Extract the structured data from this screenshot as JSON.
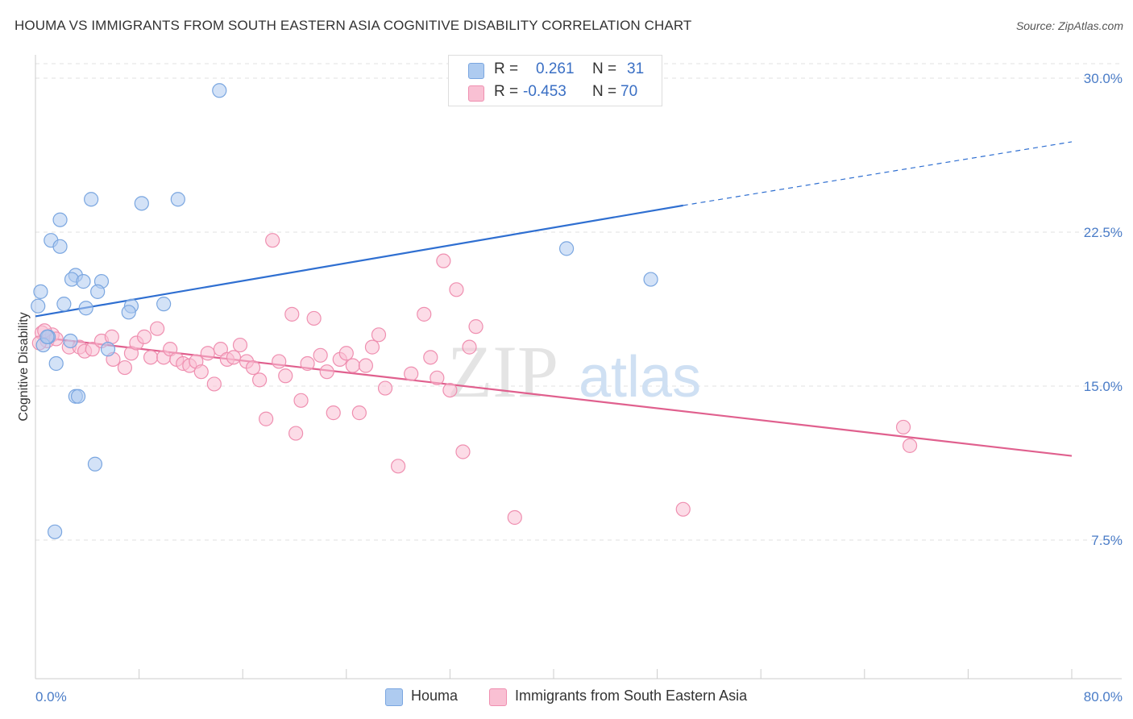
{
  "header": {
    "title": "HOUMA VS IMMIGRANTS FROM SOUTH EASTERN ASIA COGNITIVE DISABILITY CORRELATION CHART",
    "source": "Source: ZipAtlas.com"
  },
  "watermark": {
    "zip": "ZIP",
    "atlas": "atlas"
  },
  "legend": {
    "series": [
      {
        "r_label": "R =",
        "r_value": "0.261",
        "n_label": "N =",
        "n_value": "31",
        "color": "#aecbf0",
        "border": "#7aa6e0"
      },
      {
        "r_label": "R =",
        "r_value": "-0.453",
        "n_label": "N =",
        "n_value": "70",
        "color": "#f9c0d3",
        "border": "#ef8fb0"
      }
    ]
  },
  "bottom_legend": {
    "items": [
      {
        "label": "Houma",
        "color": "#aecbf0",
        "border": "#7aa6e0"
      },
      {
        "label": "Immigrants from South Eastern Asia",
        "color": "#f9c0d3",
        "border": "#ef8fb0"
      }
    ]
  },
  "chart_data": {
    "type": "scatter",
    "title": "HOUMA VS IMMIGRANTS FROM SOUTH EASTERN ASIA COGNITIVE DISABILITY CORRELATION CHART",
    "xlabel": "",
    "ylabel": "Cognitive Disability",
    "xlim": [
      0,
      80
    ],
    "ylim": [
      0,
      31
    ],
    "x_tick_labels": [
      "0.0%",
      "80.0%"
    ],
    "y_ticks": [
      7.5,
      15.0,
      22.5,
      30.0
    ],
    "y_tick_labels": [
      "7.5%",
      "15.0%",
      "22.5%",
      "30.0%"
    ],
    "grid": "horizontal dashed",
    "legend_placement": "top-center",
    "series": [
      {
        "name": "Houma",
        "color": "#7aa6e0",
        "fill": "#aecbf0",
        "line_color": "#2f6fd1",
        "trend": {
          "x0": 0,
          "y0": 18.4,
          "x1": 50,
          "y1": 23.8,
          "dash_to_x": 80,
          "dash_to_y": 26.9
        },
        "points": [
          [
            14.2,
            29.4
          ],
          [
            4.3,
            24.1
          ],
          [
            8.2,
            23.9
          ],
          [
            11.0,
            24.1
          ],
          [
            1.9,
            23.1
          ],
          [
            1.2,
            22.1
          ],
          [
            1.9,
            21.8
          ],
          [
            41.0,
            21.7
          ],
          [
            3.1,
            20.4
          ],
          [
            2.8,
            20.2
          ],
          [
            3.7,
            20.1
          ],
          [
            5.1,
            20.1
          ],
          [
            47.5,
            20.2
          ],
          [
            0.4,
            19.6
          ],
          [
            4.8,
            19.6
          ],
          [
            0.2,
            18.9
          ],
          [
            2.2,
            19.0
          ],
          [
            3.9,
            18.8
          ],
          [
            7.4,
            18.9
          ],
          [
            9.9,
            19.0
          ],
          [
            7.2,
            18.6
          ],
          [
            1.0,
            17.4
          ],
          [
            0.6,
            17.0
          ],
          [
            2.7,
            17.2
          ],
          [
            5.6,
            16.8
          ],
          [
            1.6,
            16.1
          ],
          [
            3.1,
            14.5
          ],
          [
            3.3,
            14.5
          ],
          [
            4.6,
            11.2
          ],
          [
            1.5,
            7.9
          ],
          [
            0.9,
            17.4
          ]
        ]
      },
      {
        "name": "Immigrants from South Eastern Asia",
        "color": "#ef8fb0",
        "fill": "#f9c0d3",
        "line_color": "#e0608e",
        "trend": {
          "x0": 0,
          "y0": 17.4,
          "x1": 80,
          "y1": 11.6
        },
        "points": [
          [
            0.5,
            17.6
          ],
          [
            0.9,
            17.2
          ],
          [
            1.3,
            17.5
          ],
          [
            0.7,
            17.7
          ],
          [
            1.6,
            17.3
          ],
          [
            0.3,
            17.1
          ],
          [
            2.6,
            16.9
          ],
          [
            3.4,
            16.9
          ],
          [
            3.8,
            16.7
          ],
          [
            4.4,
            16.8
          ],
          [
            5.1,
            17.2
          ],
          [
            5.9,
            17.4
          ],
          [
            6.0,
            16.3
          ],
          [
            6.9,
            15.9
          ],
          [
            7.4,
            16.6
          ],
          [
            7.8,
            17.1
          ],
          [
            8.4,
            17.4
          ],
          [
            8.9,
            16.4
          ],
          [
            9.4,
            17.8
          ],
          [
            9.9,
            16.4
          ],
          [
            10.4,
            16.8
          ],
          [
            10.9,
            16.3
          ],
          [
            11.4,
            16.1
          ],
          [
            11.9,
            16.0
          ],
          [
            12.4,
            16.2
          ],
          [
            12.8,
            15.7
          ],
          [
            13.3,
            16.6
          ],
          [
            13.8,
            15.1
          ],
          [
            14.3,
            16.8
          ],
          [
            14.8,
            16.3
          ],
          [
            15.3,
            16.4
          ],
          [
            15.8,
            17.0
          ],
          [
            16.3,
            16.2
          ],
          [
            16.8,
            15.9
          ],
          [
            17.3,
            15.3
          ],
          [
            17.8,
            13.4
          ],
          [
            18.3,
            22.1
          ],
          [
            18.8,
            16.2
          ],
          [
            19.3,
            15.5
          ],
          [
            19.8,
            18.5
          ],
          [
            20.1,
            12.7
          ],
          [
            20.5,
            14.3
          ],
          [
            21.0,
            16.1
          ],
          [
            21.5,
            18.3
          ],
          [
            22.0,
            16.5
          ],
          [
            22.5,
            15.7
          ],
          [
            23.0,
            13.7
          ],
          [
            23.5,
            16.3
          ],
          [
            24.0,
            16.6
          ],
          [
            24.5,
            16.0
          ],
          [
            25.0,
            13.7
          ],
          [
            25.5,
            16.0
          ],
          [
            26.0,
            16.9
          ],
          [
            26.5,
            17.5
          ],
          [
            27.0,
            14.9
          ],
          [
            28.0,
            11.1
          ],
          [
            29.0,
            15.6
          ],
          [
            30.0,
            18.5
          ],
          [
            30.5,
            16.4
          ],
          [
            31.0,
            15.4
          ],
          [
            31.5,
            21.1
          ],
          [
            32.0,
            14.8
          ],
          [
            32.5,
            19.7
          ],
          [
            33.0,
            11.8
          ],
          [
            33.5,
            16.9
          ],
          [
            34.0,
            17.9
          ],
          [
            37.0,
            8.6
          ],
          [
            50.0,
            9.0
          ],
          [
            67.0,
            13.0
          ],
          [
            67.5,
            12.1
          ]
        ]
      }
    ]
  }
}
